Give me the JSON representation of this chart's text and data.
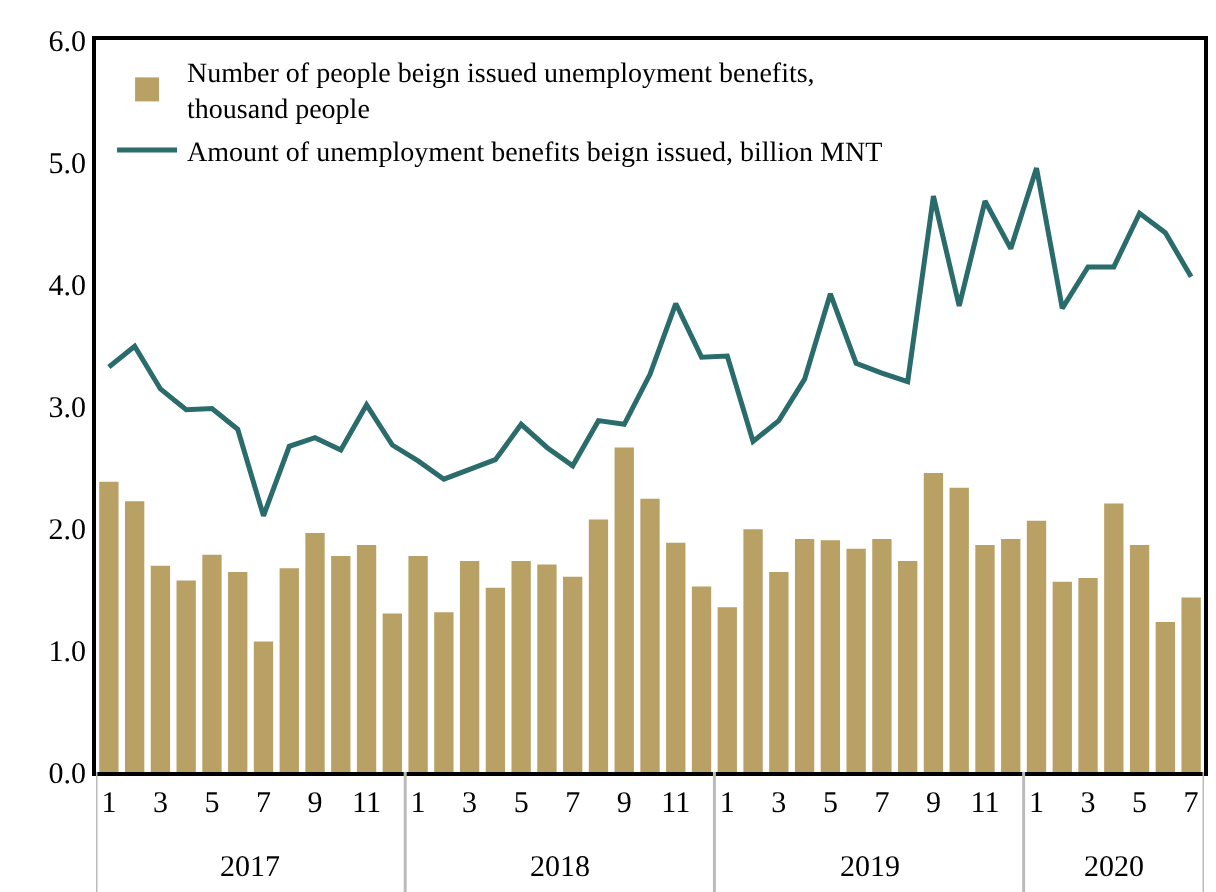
{
  "chart_data": {
    "type": "bar",
    "categories": [
      "1",
      null,
      "3",
      null,
      "5",
      null,
      "7",
      null,
      "9",
      null,
      "11",
      null,
      "1",
      null,
      "3",
      null,
      "5",
      null,
      "7",
      null,
      "9",
      null,
      "11",
      null,
      "1",
      null,
      "3",
      null,
      "5",
      null,
      "7",
      null,
      "9",
      null,
      "11",
      null,
      "1",
      null,
      "3",
      null,
      "5",
      null,
      "7"
    ],
    "series": [
      {
        "name": "Number of people beign issued unemployment benefits, thousand people",
        "color": "#b9a064",
        "values": [
          2.38,
          2.22,
          1.69,
          1.57,
          1.78,
          1.64,
          1.07,
          1.67,
          1.96,
          1.77,
          1.86,
          1.3,
          1.77,
          1.31,
          1.73,
          1.51,
          1.73,
          1.7,
          1.6,
          2.07,
          2.66,
          2.24,
          1.88,
          1.52,
          1.35,
          1.99,
          1.64,
          1.91,
          1.9,
          1.83,
          1.91,
          1.73,
          2.45,
          2.33,
          1.86,
          1.91,
          2.06,
          1.56,
          1.59,
          2.2,
          1.86,
          1.23,
          1.43
        ]
      },
      {
        "name": "Amount of unemployment benefits beign issued, billion MNT",
        "type": "line",
        "color": "#2a6b6b",
        "values": [
          3.32,
          3.49,
          3.14,
          2.97,
          2.98,
          2.81,
          2.1,
          2.67,
          2.74,
          2.64,
          3.01,
          2.68,
          2.55,
          2.4,
          2.48,
          2.56,
          2.85,
          2.66,
          2.51,
          2.88,
          2.85,
          3.26,
          3.84,
          3.4,
          3.41,
          2.71,
          2.88,
          3.22,
          3.92,
          3.35,
          3.27,
          3.2,
          4.72,
          3.82,
          4.68,
          4.29,
          4.95,
          3.8,
          4.14,
          4.14,
          4.58,
          4.42,
          4.06
        ]
      }
    ],
    "ylim": [
      0,
      6
    ],
    "yticks": [
      {
        "value": 0,
        "label": "0.0"
      },
      {
        "value": 1,
        "label": "1.0"
      },
      {
        "value": 2,
        "label": "2.0"
      },
      {
        "value": 3,
        "label": "3.0"
      },
      {
        "value": 4,
        "label": "4.0"
      },
      {
        "value": 5,
        "label": "5.0"
      },
      {
        "value": 6,
        "label": "6.0"
      }
    ],
    "annotations": [
      "2017",
      "2018",
      "2019",
      "2020"
    ],
    "legend": "top left",
    "grid": false,
    "marker": "none",
    "line_style": "solid"
  }
}
